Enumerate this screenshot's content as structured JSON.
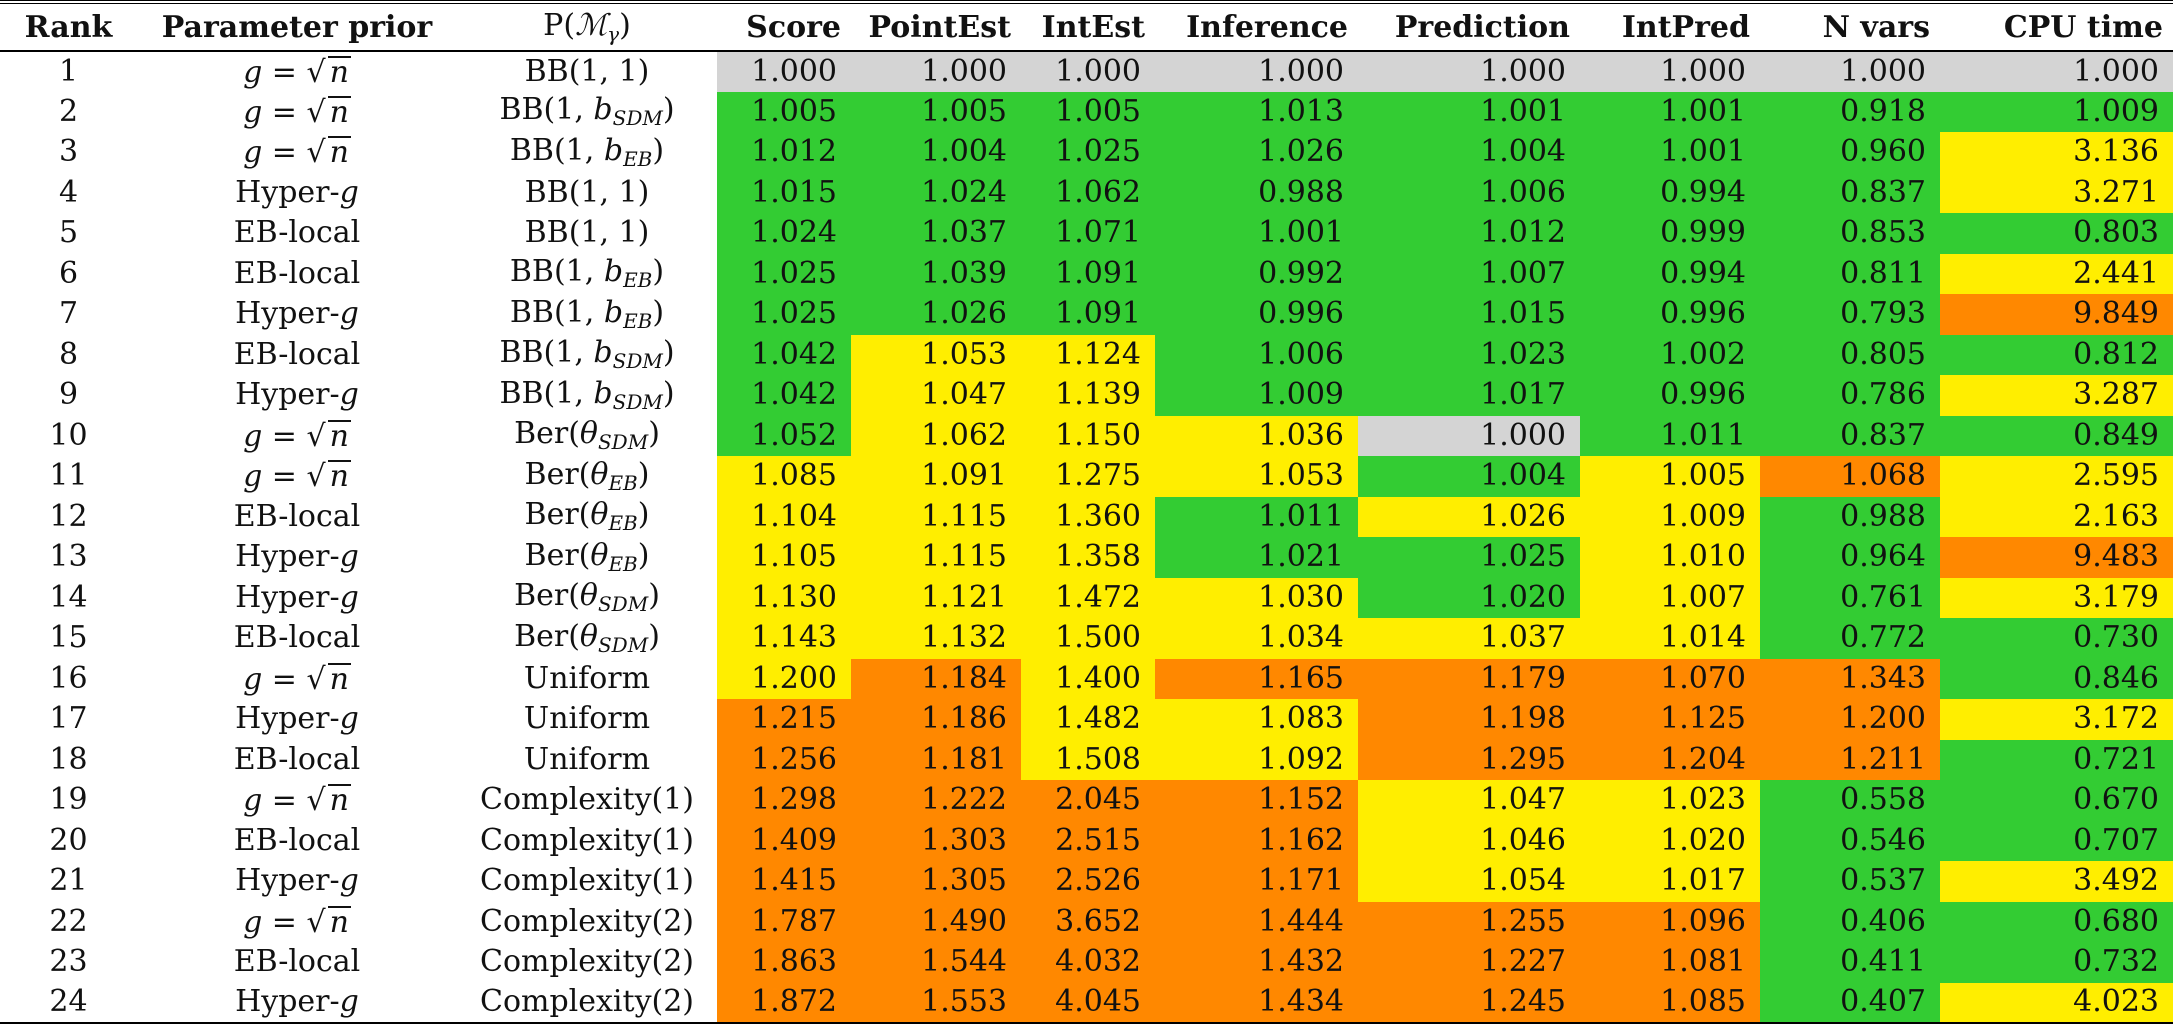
{
  "headers": {
    "rank": "Rank",
    "param_prior": "Parameter prior",
    "model_prior": "P(ℳ_γ)",
    "score": "Score",
    "pointest": "PointEst",
    "intest": "IntEst",
    "inference": "Inference",
    "prediction": "Prediction",
    "intpred": "IntPred",
    "nvars": "N vars",
    "cpu": "CPU time"
  },
  "cell_colors": {
    "green": "#33cc33",
    "yellow": "#ffee00",
    "orange": "#ff8800",
    "gray": "#d4d4d4"
  },
  "rows": [
    {
      "rank": "1",
      "param": "g = √n",
      "model": "BB(1, 1)",
      "score": "1.000",
      "pointest": "1.000",
      "intest": "1.000",
      "inference": "1.000",
      "prediction": "1.000",
      "intpred": "1.000",
      "nvars": "1.000",
      "cpu": "1.000",
      "colors": [
        "s",
        "s",
        "s",
        "s",
        "s",
        "s",
        "s",
        "s"
      ]
    },
    {
      "rank": "2",
      "param": "g = √n",
      "model": "BB(1, b_SDM)",
      "score": "1.005",
      "pointest": "1.005",
      "intest": "1.005",
      "inference": "1.013",
      "prediction": "1.001",
      "intpred": "1.001",
      "nvars": "0.918",
      "cpu": "1.009",
      "colors": [
        "g",
        "g",
        "g",
        "g",
        "g",
        "g",
        "g",
        "g"
      ]
    },
    {
      "rank": "3",
      "param": "g = √n",
      "model": "BB(1, b_EB)",
      "score": "1.012",
      "pointest": "1.004",
      "intest": "1.025",
      "inference": "1.026",
      "prediction": "1.004",
      "intpred": "1.001",
      "nvars": "0.960",
      "cpu": "3.136",
      "colors": [
        "g",
        "g",
        "g",
        "g",
        "g",
        "g",
        "g",
        "y"
      ]
    },
    {
      "rank": "4",
      "param": "Hyper-g",
      "model": "BB(1, 1)",
      "score": "1.015",
      "pointest": "1.024",
      "intest": "1.062",
      "inference": "0.988",
      "prediction": "1.006",
      "intpred": "0.994",
      "nvars": "0.837",
      "cpu": "3.271",
      "colors": [
        "g",
        "g",
        "g",
        "g",
        "g",
        "g",
        "g",
        "y"
      ]
    },
    {
      "rank": "5",
      "param": "EB-local",
      "model": "BB(1, 1)",
      "score": "1.024",
      "pointest": "1.037",
      "intest": "1.071",
      "inference": "1.001",
      "prediction": "1.012",
      "intpred": "0.999",
      "nvars": "0.853",
      "cpu": "0.803",
      "colors": [
        "g",
        "g",
        "g",
        "g",
        "g",
        "g",
        "g",
        "g"
      ]
    },
    {
      "rank": "6",
      "param": "EB-local",
      "model": "BB(1, b_EB)",
      "score": "1.025",
      "pointest": "1.039",
      "intest": "1.091",
      "inference": "0.992",
      "prediction": "1.007",
      "intpred": "0.994",
      "nvars": "0.811",
      "cpu": "2.441",
      "colors": [
        "g",
        "g",
        "g",
        "g",
        "g",
        "g",
        "g",
        "y"
      ]
    },
    {
      "rank": "7",
      "param": "Hyper-g",
      "model": "BB(1, b_EB)",
      "score": "1.025",
      "pointest": "1.026",
      "intest": "1.091",
      "inference": "0.996",
      "prediction": "1.015",
      "intpred": "0.996",
      "nvars": "0.793",
      "cpu": "9.849",
      "colors": [
        "g",
        "g",
        "g",
        "g",
        "g",
        "g",
        "g",
        "o"
      ]
    },
    {
      "rank": "8",
      "param": "EB-local",
      "model": "BB(1, b_SDM)",
      "score": "1.042",
      "pointest": "1.053",
      "intest": "1.124",
      "inference": "1.006",
      "prediction": "1.023",
      "intpred": "1.002",
      "nvars": "0.805",
      "cpu": "0.812",
      "colors": [
        "g",
        "y",
        "y",
        "g",
        "g",
        "g",
        "g",
        "g"
      ]
    },
    {
      "rank": "9",
      "param": "Hyper-g",
      "model": "BB(1, b_SDM)",
      "score": "1.042",
      "pointest": "1.047",
      "intest": "1.139",
      "inference": "1.009",
      "prediction": "1.017",
      "intpred": "0.996",
      "nvars": "0.786",
      "cpu": "3.287",
      "colors": [
        "g",
        "y",
        "y",
        "g",
        "g",
        "g",
        "g",
        "y"
      ]
    },
    {
      "rank": "10",
      "param": "g = √n",
      "model": "Ber(θ_SDM)",
      "score": "1.052",
      "pointest": "1.062",
      "intest": "1.150",
      "inference": "1.036",
      "prediction": "1.000",
      "intpred": "1.011",
      "nvars": "0.837",
      "cpu": "0.849",
      "colors": [
        "g",
        "y",
        "y",
        "y",
        "s",
        "g",
        "g",
        "g"
      ]
    },
    {
      "rank": "11",
      "param": "g = √n",
      "model": "Ber(θ_EB)",
      "score": "1.085",
      "pointest": "1.091",
      "intest": "1.275",
      "inference": "1.053",
      "prediction": "1.004",
      "intpred": "1.005",
      "nvars": "1.068",
      "cpu": "2.595",
      "colors": [
        "y",
        "y",
        "y",
        "y",
        "g",
        "y",
        "o",
        "y"
      ]
    },
    {
      "rank": "12",
      "param": "EB-local",
      "model": "Ber(θ_EB)",
      "score": "1.104",
      "pointest": "1.115",
      "intest": "1.360",
      "inference": "1.011",
      "prediction": "1.026",
      "intpred": "1.009",
      "nvars": "0.988",
      "cpu": "2.163",
      "colors": [
        "y",
        "y",
        "y",
        "g",
        "y",
        "y",
        "g",
        "y"
      ]
    },
    {
      "rank": "13",
      "param": "Hyper-g",
      "model": "Ber(θ_EB)",
      "score": "1.105",
      "pointest": "1.115",
      "intest": "1.358",
      "inference": "1.021",
      "prediction": "1.025",
      "intpred": "1.010",
      "nvars": "0.964",
      "cpu": "9.483",
      "colors": [
        "y",
        "y",
        "y",
        "g",
        "g",
        "y",
        "g",
        "o"
      ]
    },
    {
      "rank": "14",
      "param": "Hyper-g",
      "model": "Ber(θ_SDM)",
      "score": "1.130",
      "pointest": "1.121",
      "intest": "1.472",
      "inference": "1.030",
      "prediction": "1.020",
      "intpred": "1.007",
      "nvars": "0.761",
      "cpu": "3.179",
      "colors": [
        "y",
        "y",
        "y",
        "y",
        "g",
        "y",
        "g",
        "y"
      ]
    },
    {
      "rank": "15",
      "param": "EB-local",
      "model": "Ber(θ_SDM)",
      "score": "1.143",
      "pointest": "1.132",
      "intest": "1.500",
      "inference": "1.034",
      "prediction": "1.037",
      "intpred": "1.014",
      "nvars": "0.772",
      "cpu": "0.730",
      "colors": [
        "y",
        "y",
        "y",
        "y",
        "y",
        "y",
        "g",
        "g"
      ]
    },
    {
      "rank": "16",
      "param": "g = √n",
      "model": "Uniform",
      "score": "1.200",
      "pointest": "1.184",
      "intest": "1.400",
      "inference": "1.165",
      "prediction": "1.179",
      "intpred": "1.070",
      "nvars": "1.343",
      "cpu": "0.846",
      "colors": [
        "y",
        "o",
        "y",
        "o",
        "o",
        "o",
        "o",
        "g"
      ]
    },
    {
      "rank": "17",
      "param": "Hyper-g",
      "model": "Uniform",
      "score": "1.215",
      "pointest": "1.186",
      "intest": "1.482",
      "inference": "1.083",
      "prediction": "1.198",
      "intpred": "1.125",
      "nvars": "1.200",
      "cpu": "3.172",
      "colors": [
        "o",
        "o",
        "y",
        "y",
        "o",
        "o",
        "o",
        "y"
      ]
    },
    {
      "rank": "18",
      "param": "EB-local",
      "model": "Uniform",
      "score": "1.256",
      "pointest": "1.181",
      "intest": "1.508",
      "inference": "1.092",
      "prediction": "1.295",
      "intpred": "1.204",
      "nvars": "1.211",
      "cpu": "0.721",
      "colors": [
        "o",
        "o",
        "y",
        "y",
        "o",
        "o",
        "o",
        "g"
      ]
    },
    {
      "rank": "19",
      "param": "g = √n",
      "model": "Complexity(1)",
      "score": "1.298",
      "pointest": "1.222",
      "intest": "2.045",
      "inference": "1.152",
      "prediction": "1.047",
      "intpred": "1.023",
      "nvars": "0.558",
      "cpu": "0.670",
      "colors": [
        "o",
        "o",
        "o",
        "o",
        "y",
        "y",
        "g",
        "g"
      ]
    },
    {
      "rank": "20",
      "param": "EB-local",
      "model": "Complexity(1)",
      "score": "1.409",
      "pointest": "1.303",
      "intest": "2.515",
      "inference": "1.162",
      "prediction": "1.046",
      "intpred": "1.020",
      "nvars": "0.546",
      "cpu": "0.707",
      "colors": [
        "o",
        "o",
        "o",
        "o",
        "y",
        "y",
        "g",
        "g"
      ]
    },
    {
      "rank": "21",
      "param": "Hyper-g",
      "model": "Complexity(1)",
      "score": "1.415",
      "pointest": "1.305",
      "intest": "2.526",
      "inference": "1.171",
      "prediction": "1.054",
      "intpred": "1.017",
      "nvars": "0.537",
      "cpu": "3.492",
      "colors": [
        "o",
        "o",
        "o",
        "o",
        "y",
        "y",
        "g",
        "y"
      ]
    },
    {
      "rank": "22",
      "param": "g = √n",
      "model": "Complexity(2)",
      "score": "1.787",
      "pointest": "1.490",
      "intest": "3.652",
      "inference": "1.444",
      "prediction": "1.255",
      "intpred": "1.096",
      "nvars": "0.406",
      "cpu": "0.680",
      "colors": [
        "o",
        "o",
        "o",
        "o",
        "o",
        "o",
        "g",
        "g"
      ]
    },
    {
      "rank": "23",
      "param": "EB-local",
      "model": "Complexity(2)",
      "score": "1.863",
      "pointest": "1.544",
      "intest": "4.032",
      "inference": "1.432",
      "prediction": "1.227",
      "intpred": "1.081",
      "nvars": "0.411",
      "cpu": "0.732",
      "colors": [
        "o",
        "o",
        "o",
        "o",
        "o",
        "o",
        "g",
        "g"
      ]
    },
    {
      "rank": "24",
      "param": "Hyper-g",
      "model": "Complexity(2)",
      "score": "1.872",
      "pointest": "1.553",
      "intest": "4.045",
      "inference": "1.434",
      "prediction": "1.245",
      "intpred": "1.085",
      "nvars": "0.407",
      "cpu": "4.023",
      "colors": [
        "o",
        "o",
        "o",
        "o",
        "o",
        "o",
        "g",
        "y"
      ]
    }
  ]
}
